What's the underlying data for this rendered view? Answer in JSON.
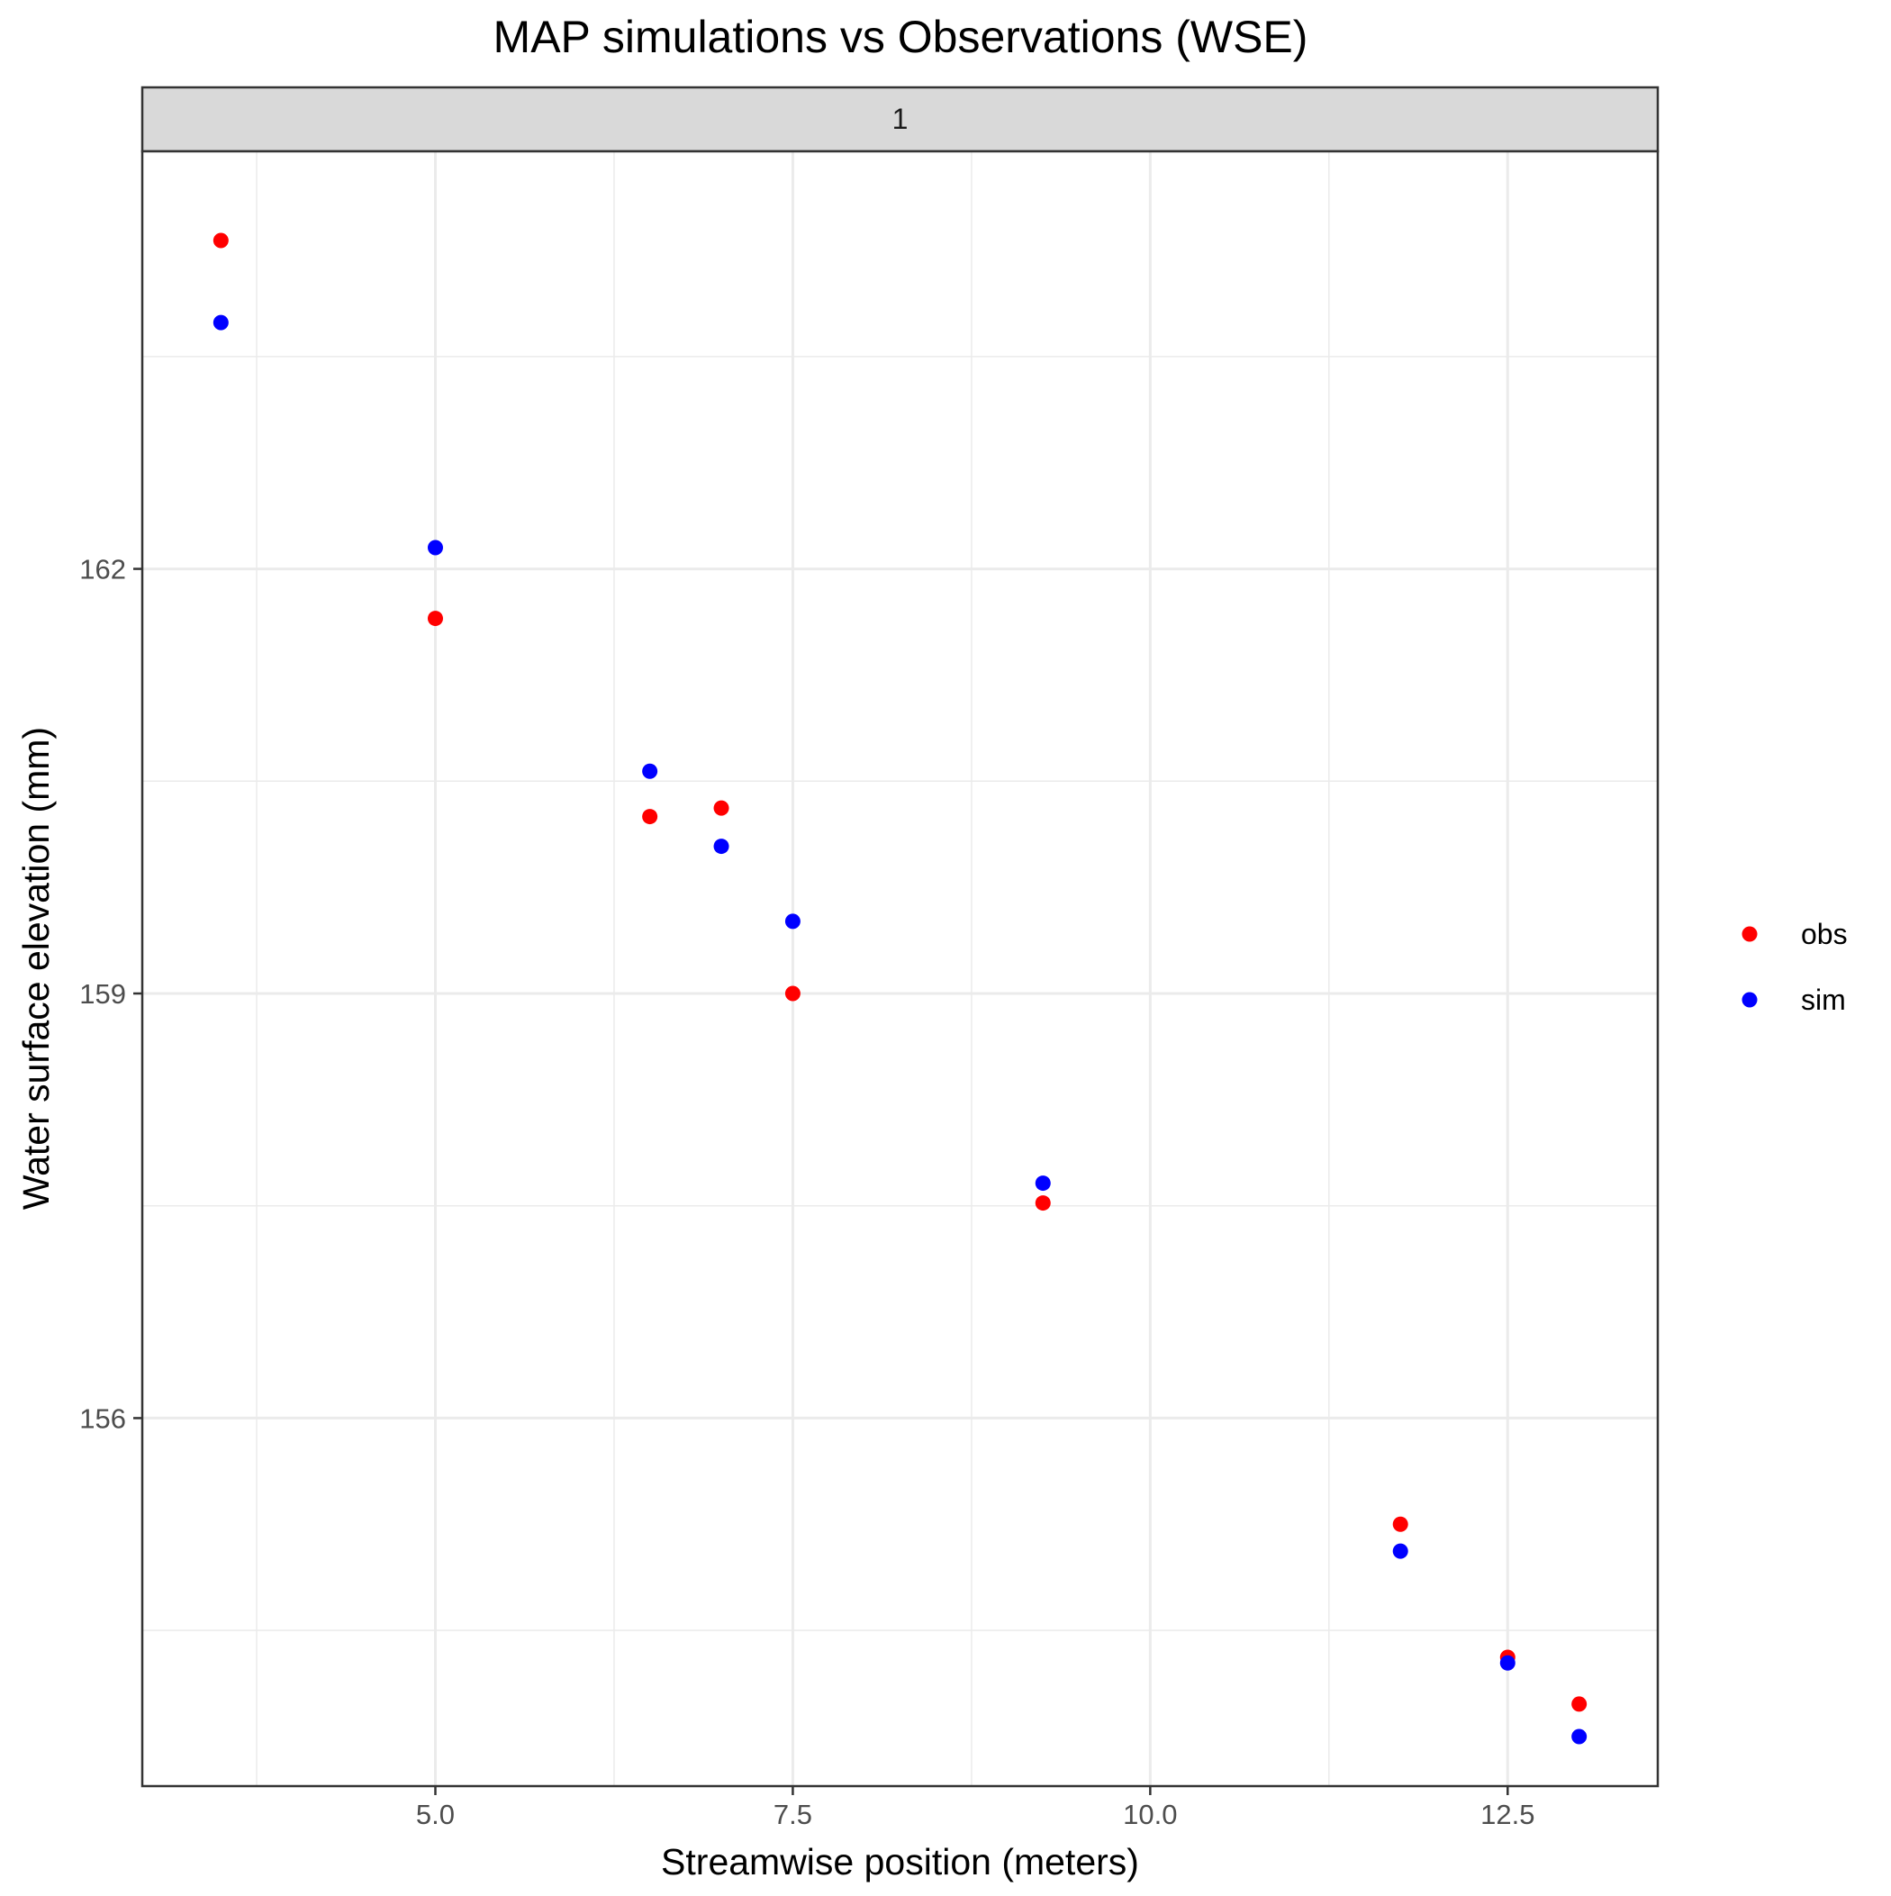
{
  "chart_data": {
    "type": "scatter",
    "title": "MAP simulations vs Observations (WSE)",
    "facet_label": "1",
    "xlabel": "Streamwise position (meters)",
    "ylabel": "Water surface elevation (mm)",
    "xlim": [
      2.95,
      13.55
    ],
    "ylim": [
      153.4,
      164.95
    ],
    "x_ticks": [
      5.0,
      7.5,
      10.0,
      12.5
    ],
    "x_tick_labels": [
      "5.0",
      "7.5",
      "10.0",
      "12.5"
    ],
    "x_minor_ticks": [
      3.75,
      6.25,
      8.75,
      11.25
    ],
    "y_ticks": [
      156,
      159,
      162
    ],
    "y_tick_labels": [
      "156",
      "159",
      "162"
    ],
    "y_minor_ticks": [
      154.5,
      157.5,
      160.5,
      163.5
    ],
    "grid": true,
    "legend_position": "right",
    "series": [
      {
        "name": "obs",
        "color": "#ff0000",
        "points": [
          {
            "x": 3.5,
            "y": 164.32
          },
          {
            "x": 5.0,
            "y": 161.65
          },
          {
            "x": 6.5,
            "y": 160.25
          },
          {
            "x": 7.0,
            "y": 160.31
          },
          {
            "x": 7.5,
            "y": 159.0
          },
          {
            "x": 9.25,
            "y": 157.52
          },
          {
            "x": 11.75,
            "y": 155.25
          },
          {
            "x": 12.5,
            "y": 154.31
          },
          {
            "x": 13.0,
            "y": 153.98
          }
        ]
      },
      {
        "name": "sim",
        "color": "#0000ff",
        "points": [
          {
            "x": 3.5,
            "y": 163.74
          },
          {
            "x": 5.0,
            "y": 162.15
          },
          {
            "x": 6.5,
            "y": 160.57
          },
          {
            "x": 7.0,
            "y": 160.04
          },
          {
            "x": 7.5,
            "y": 159.51
          },
          {
            "x": 9.25,
            "y": 157.66
          },
          {
            "x": 11.75,
            "y": 155.06
          },
          {
            "x": 12.5,
            "y": 154.27
          },
          {
            "x": 13.0,
            "y": 153.75
          }
        ]
      }
    ]
  }
}
